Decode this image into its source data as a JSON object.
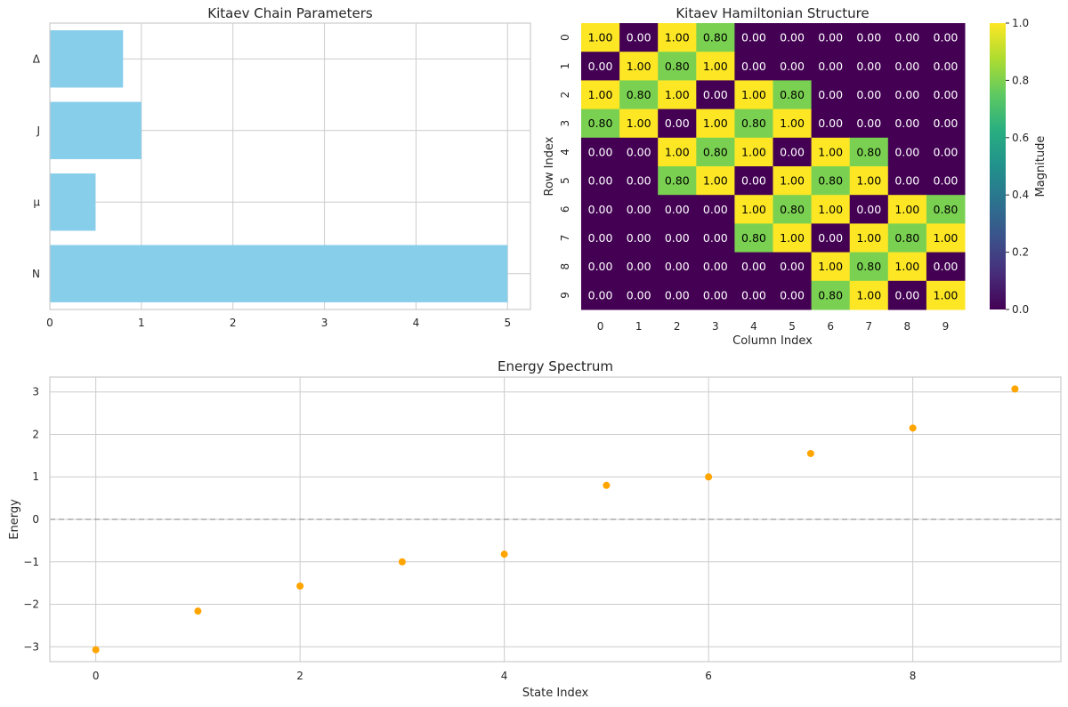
{
  "chart_data": [
    {
      "type": "bar",
      "orientation": "horizontal",
      "title": "Kitaev Chain Parameters",
      "categories": [
        "N",
        "μ",
        "J",
        "Δ"
      ],
      "values": [
        5,
        0.5,
        1,
        0.8
      ],
      "xlim": [
        0,
        5.25
      ],
      "xticks": [
        "0",
        "1",
        "2",
        "3",
        "4",
        "5"
      ],
      "xlabel": "",
      "ylabel": "",
      "bar_color": "#87ceeb",
      "grid": true
    },
    {
      "type": "heatmap",
      "title": "Kitaev Hamiltonian Structure",
      "xlabel": "Column Index",
      "ylabel": "Row Index",
      "row_labels": [
        "0",
        "1",
        "2",
        "3",
        "4",
        "5",
        "6",
        "7",
        "8",
        "9"
      ],
      "col_labels": [
        "0",
        "1",
        "2",
        "3",
        "4",
        "5",
        "6",
        "7",
        "8",
        "9"
      ],
      "matrix": [
        [
          1.0,
          0.0,
          1.0,
          0.8,
          0.0,
          0.0,
          0.0,
          0.0,
          0.0,
          0.0
        ],
        [
          0.0,
          1.0,
          0.8,
          1.0,
          0.0,
          0.0,
          0.0,
          0.0,
          0.0,
          0.0
        ],
        [
          1.0,
          0.8,
          1.0,
          0.0,
          1.0,
          0.8,
          0.0,
          0.0,
          0.0,
          0.0
        ],
        [
          0.8,
          1.0,
          0.0,
          1.0,
          0.8,
          1.0,
          0.0,
          0.0,
          0.0,
          0.0
        ],
        [
          0.0,
          0.0,
          1.0,
          0.8,
          1.0,
          0.0,
          1.0,
          0.8,
          0.0,
          0.0
        ],
        [
          0.0,
          0.0,
          0.8,
          1.0,
          0.0,
          1.0,
          0.8,
          1.0,
          0.0,
          0.0
        ],
        [
          0.0,
          0.0,
          0.0,
          0.0,
          1.0,
          0.8,
          1.0,
          0.0,
          1.0,
          0.8
        ],
        [
          0.0,
          0.0,
          0.0,
          0.0,
          0.8,
          1.0,
          0.0,
          1.0,
          0.8,
          1.0
        ],
        [
          0.0,
          0.0,
          0.0,
          0.0,
          0.0,
          0.0,
          1.0,
          0.8,
          1.0,
          0.0
        ],
        [
          0.0,
          0.0,
          0.0,
          0.0,
          0.0,
          0.0,
          0.8,
          1.0,
          0.0,
          1.0
        ]
      ],
      "colormap": "viridis",
      "colorbar": {
        "label": "Magnitude",
        "range": [
          0,
          1
        ],
        "ticks": [
          "0.0",
          "0.2",
          "0.4",
          "0.6",
          "0.8",
          "1.0"
        ]
      },
      "colors": {
        "low": "#440154",
        "mid": "#7ad151",
        "high": "#fde725"
      }
    },
    {
      "type": "scatter",
      "title": "Energy Spectrum",
      "xlabel": "State Index",
      "ylabel": "Energy",
      "x": [
        0,
        1,
        2,
        3,
        4,
        5,
        6,
        7,
        8,
        9
      ],
      "y": [
        -3.07,
        -2.16,
        -1.57,
        -1.0,
        -0.82,
        0.8,
        1.0,
        1.55,
        2.15,
        3.07
      ],
      "xlim": [
        -0.45,
        9.45
      ],
      "ylim": [
        -3.35,
        3.35
      ],
      "xticks": [
        {
          "v": 0,
          "t": "0"
        },
        {
          "v": 2,
          "t": "2"
        },
        {
          "v": 4,
          "t": "4"
        },
        {
          "v": 6,
          "t": "6"
        },
        {
          "v": 8,
          "t": "8"
        }
      ],
      "yticks": [
        {
          "v": 3,
          "t": "3"
        },
        {
          "v": 2,
          "t": "2"
        },
        {
          "v": 1,
          "t": "1"
        },
        {
          "v": 0,
          "t": "0"
        },
        {
          "v": -1,
          "t": "−1"
        },
        {
          "v": -2,
          "t": "−2"
        },
        {
          "v": -3,
          "t": "−3"
        }
      ],
      "reference_line": 0,
      "marker_color": "#ffa500",
      "grid": true
    }
  ]
}
